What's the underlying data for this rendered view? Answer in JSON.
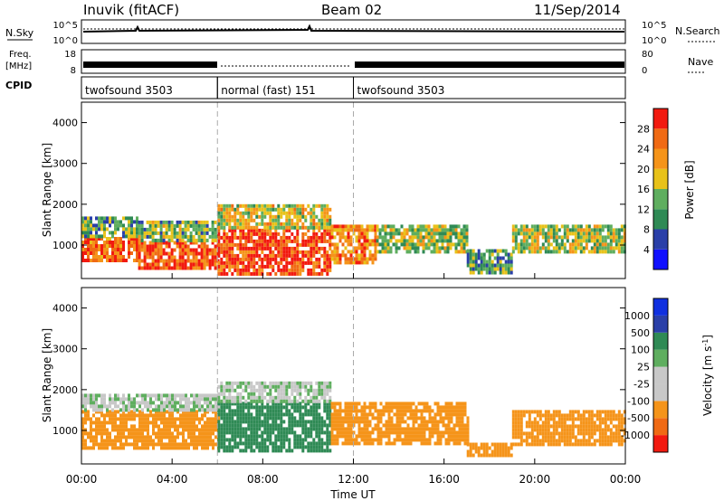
{
  "header": {
    "station": "Inuvik (fitACF)",
    "beam": "Beam 02",
    "date": "11/Sep/2014"
  },
  "top_panels": {
    "nsky": {
      "label": "N.Sky",
      "ticks": [
        "10^5",
        "10^0"
      ],
      "right_label": "N.Search",
      "right_ticks": [
        "10^5",
        "10^0"
      ]
    },
    "freq": {
      "label_line1": "Freq.",
      "label_line2": "[MHz]",
      "ticks": [
        "18",
        "8"
      ],
      "right_label": "Nave",
      "right_ticks": [
        "80",
        "0"
      ]
    },
    "cpid": {
      "label": "CPID",
      "segments": [
        {
          "label": "twofsound 3503",
          "start": 0,
          "end": 6
        },
        {
          "label": "normal (fast) 151",
          "start": 6,
          "end": 12
        },
        {
          "label": "twofsound 3503",
          "start": 12,
          "end": 24
        }
      ]
    }
  },
  "colors": {
    "power_scale": [
      "#1010ff",
      "#2a3fa8",
      "#2f8a55",
      "#5fae5f",
      "#e8c21a",
      "#f5941a",
      "#f06a14",
      "#f21a10"
    ],
    "velocity_scale": [
      "#f21a10",
      "#f06a14",
      "#f5941a",
      "#c8c8c8",
      "#c8c8c8",
      "#5fae5f",
      "#2f8a55",
      "#2a3fa8",
      "#1030e0"
    ]
  },
  "chart_data": [
    {
      "type": "heatmap",
      "title": "",
      "xlabel": "",
      "ylabel": "Slant Range [km]",
      "x_ticks": [
        "00:00",
        "04:00",
        "08:00",
        "12:00",
        "16:00",
        "20:00",
        "00:00"
      ],
      "xlim": [
        0,
        24
      ],
      "y_ticks": [
        "1000",
        "2000",
        "3000",
        "4000"
      ],
      "ylim": [
        180,
        4500
      ],
      "colorbar": {
        "label": "Power [dB]",
        "ticks": [
          "28",
          "24",
          "20",
          "16",
          "12",
          "8",
          "4"
        ],
        "range": [
          0,
          32
        ]
      },
      "regions": [
        {
          "t": [
            0,
            2.5
          ],
          "r": [
            600,
            1200
          ],
          "value": 26
        },
        {
          "t": [
            0,
            2.5
          ],
          "r": [
            1200,
            1700
          ],
          "value": 12
        },
        {
          "t": [
            2.5,
            6
          ],
          "r": [
            400,
            1100
          ],
          "value": 27
        },
        {
          "t": [
            2.5,
            6
          ],
          "r": [
            1100,
            1600
          ],
          "value": 14
        },
        {
          "t": [
            6,
            11
          ],
          "r": [
            300,
            1400
          ],
          "value": 28
        },
        {
          "t": [
            6,
            11
          ],
          "r": [
            1400,
            2000
          ],
          "value": 18
        },
        {
          "t": [
            11,
            13
          ],
          "r": [
            600,
            1500
          ],
          "value": 24
        },
        {
          "t": [
            13,
            17
          ],
          "r": [
            800,
            1500
          ],
          "value": 15
        },
        {
          "t": [
            17,
            19
          ],
          "r": [
            300,
            900
          ],
          "value": 12
        },
        {
          "t": [
            19,
            24
          ],
          "r": [
            800,
            1500
          ],
          "value": 16
        }
      ]
    },
    {
      "type": "heatmap",
      "title": "",
      "xlabel": "Time UT",
      "ylabel": "Slant Range [km]",
      "x_ticks": [
        "00:00",
        "04:00",
        "08:00",
        "12:00",
        "16:00",
        "20:00",
        "00:00"
      ],
      "xlim": [
        0,
        24
      ],
      "y_ticks": [
        "1000",
        "2000",
        "3000",
        "4000"
      ],
      "ylim": [
        180,
        4500
      ],
      "colorbar": {
        "label": "Velocity [m s^-1]",
        "ticks": [
          "1000",
          "500",
          "100",
          "25",
          "-25",
          "-100",
          "-500",
          "-1000"
        ]
      },
      "regions": [
        {
          "t": [
            0,
            6
          ],
          "r": [
            600,
            1500
          ],
          "value": -250
        },
        {
          "t": [
            0,
            6
          ],
          "r": [
            1500,
            1900
          ],
          "value": 0
        },
        {
          "t": [
            6,
            11
          ],
          "r": [
            500,
            1700
          ],
          "value": 300
        },
        {
          "t": [
            6,
            11
          ],
          "r": [
            1700,
            2200
          ],
          "value": 0
        },
        {
          "t": [
            11,
            17
          ],
          "r": [
            700,
            1700
          ],
          "value": -250
        },
        {
          "t": [
            17,
            19
          ],
          "r": [
            400,
            700
          ],
          "value": -250
        },
        {
          "t": [
            19,
            24
          ],
          "r": [
            700,
            1500
          ],
          "value": -250
        }
      ]
    }
  ]
}
